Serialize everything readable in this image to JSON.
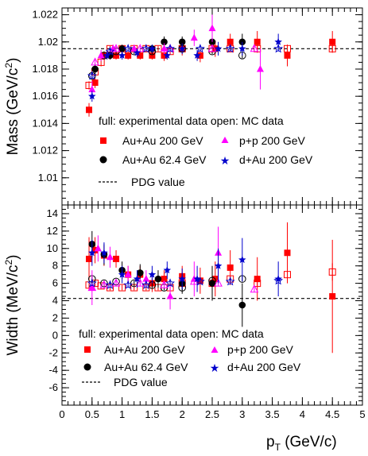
{
  "chart_data": [
    {
      "type": "scatter",
      "panel": "top",
      "ylabel": "Mass (GeV/c",
      "ylabel_sup": "2",
      "ylabel_close": ")",
      "xlim": [
        0,
        5
      ],
      "ylim": [
        1.008,
        1.0225
      ],
      "yticks": [
        "1.022",
        "1.02",
        "1.018",
        "1.016",
        "1.014",
        "1.012",
        "1.01"
      ],
      "ytick_values": [
        1.022,
        1.02,
        1.018,
        1.016,
        1.014,
        1.012,
        1.01
      ],
      "reference_line": {
        "label": "PDG value",
        "y": 1.0195,
        "style": "dashed"
      },
      "legend_header": "full: experimental data  open: MC data",
      "series": [
        {
          "name": "Au+Au 200 GeV",
          "marker": "square",
          "color": "#ff0000",
          "exp": [
            [
              0.45,
              1.015
            ],
            [
              0.55,
              1.017
            ],
            [
              0.7,
              1.019
            ],
            [
              0.9,
              1.019
            ],
            [
              1.1,
              1.019
            ],
            [
              1.3,
              1.019
            ],
            [
              1.5,
              1.019
            ],
            [
              1.7,
              1.019
            ],
            [
              2.0,
              1.0195
            ],
            [
              2.3,
              1.019
            ],
            [
              2.55,
              1.0195
            ],
            [
              2.8,
              1.02
            ],
            [
              3.25,
              1.02
            ],
            [
              3.75,
              1.019
            ],
            [
              4.5,
              1.02
            ]
          ],
          "exp_err": [
            0.0005,
            0.0004,
            0.0003,
            0.0003,
            0.0003,
            0.0003,
            0.0003,
            0.0004,
            0.0005,
            0.0005,
            0.0006,
            0.0006,
            0.0008,
            0.0008,
            0.0008
          ],
          "mc": [
            [
              0.45,
              1.0168
            ],
            [
              0.55,
              1.0178
            ],
            [
              0.65,
              1.0185
            ],
            [
              0.8,
              1.0195
            ],
            [
              1.0,
              1.0195
            ],
            [
              1.2,
              1.0195
            ],
            [
              1.4,
              1.0195
            ],
            [
              1.6,
              1.0195
            ],
            [
              1.8,
              1.0193
            ],
            [
              2.0,
              1.0195
            ],
            [
              2.5,
              1.0195
            ],
            [
              2.8,
              1.0195
            ],
            [
              3.25,
              1.0195
            ],
            [
              3.75,
              1.0195
            ],
            [
              4.5,
              1.0195
            ]
          ],
          "mc_err": [
            0.0003,
            0.0003,
            0.0003,
            0.0002,
            0.0002,
            0.0002,
            0.0002,
            0.0002,
            0.0002,
            0.0002,
            0.0002,
            0.0002,
            0.0002,
            0.0002,
            0.0002
          ]
        },
        {
          "name": "Au+Au 62.4 GeV",
          "marker": "circle",
          "color": "#000000",
          "exp": [
            [
              0.55,
              1.018
            ],
            [
              0.8,
              1.019
            ],
            [
              1.0,
              1.0195
            ],
            [
              1.5,
              1.0195
            ],
            [
              1.7,
              1.02
            ],
            [
              2.0,
              1.02
            ],
            [
              2.5,
              1.02
            ],
            [
              3.0,
              1.02
            ]
          ],
          "exp_err": [
            0.0004,
            0.0003,
            0.0003,
            0.0003,
            0.0004,
            0.0004,
            0.0005,
            0.0006
          ],
          "mc": [
            [
              0.5,
              1.0175
            ],
            [
              0.7,
              1.019
            ],
            [
              0.9,
              1.0193
            ],
            [
              1.2,
              1.0193
            ],
            [
              1.5,
              1.0193
            ],
            [
              2.0,
              1.0195
            ],
            [
              2.5,
              1.0193
            ],
            [
              3.0,
              1.019
            ]
          ],
          "mc_err": [
            0.0002,
            0.0002,
            0.0002,
            0.0002,
            0.0002,
            0.0002,
            0.0002,
            0.0002
          ]
        },
        {
          "name": "p+p 200 GeV",
          "marker": "triangle",
          "color": "#ff00ff",
          "exp": [
            [
              0.5,
              1.0165
            ],
            [
              0.65,
              1.019
            ],
            [
              0.85,
              1.0195
            ],
            [
              1.2,
              1.0195
            ],
            [
              1.7,
              1.0195
            ],
            [
              2.2,
              1.0203
            ],
            [
              2.5,
              1.021
            ],
            [
              3.3,
              1.018
            ]
          ],
          "exp_err": [
            0.0006,
            0.0004,
            0.0003,
            0.0003,
            0.0004,
            0.0006,
            0.001,
            0.0015
          ],
          "mc": [
            [
              0.55,
              1.0185
            ],
            [
              0.9,
              1.0195
            ],
            [
              1.3,
              1.0195
            ],
            [
              1.8,
              1.0195
            ],
            [
              2.5,
              1.0195
            ],
            [
              3.2,
              1.0195
            ]
          ],
          "mc_err": [
            0.0002,
            0.0002,
            0.0002,
            0.0002,
            0.0002,
            0.0002
          ]
        },
        {
          "name": "d+Au 200 GeV",
          "marker": "star",
          "color": "#0000cc",
          "exp": [
            [
              0.5,
              1.016
            ],
            [
              0.75,
              1.019
            ],
            [
              1.0,
              1.019
            ],
            [
              1.25,
              1.0192
            ],
            [
              1.5,
              1.0195
            ],
            [
              1.75,
              1.019
            ],
            [
              2.0,
              1.0195
            ],
            [
              2.25,
              1.019
            ],
            [
              2.6,
              1.0195
            ],
            [
              3.0,
              1.0195
            ],
            [
              3.6,
              1.02
            ]
          ],
          "exp_err": [
            0.0004,
            0.0003,
            0.0003,
            0.0003,
            0.0003,
            0.0003,
            0.0004,
            0.0004,
            0.0005,
            0.0005,
            0.0006
          ],
          "mc": [
            [
              0.5,
              1.0175
            ],
            [
              0.8,
              1.0193
            ],
            [
              1.1,
              1.0195
            ],
            [
              1.4,
              1.0195
            ],
            [
              1.8,
              1.0195
            ],
            [
              2.3,
              1.0195
            ],
            [
              2.8,
              1.0195
            ],
            [
              3.6,
              1.0195
            ]
          ],
          "mc_err": [
            0.0002,
            0.0002,
            0.0002,
            0.0002,
            0.0002,
            0.0002,
            0.0002,
            0.0002
          ]
        }
      ]
    },
    {
      "type": "scatter",
      "panel": "bottom",
      "ylabel": "Width (MeV/c",
      "ylabel_sup": "2",
      "ylabel_close": ")",
      "xlabel": "p",
      "xlabel_sub": "T",
      "xlabel_rest": " (GeV/c)",
      "xlim": [
        0,
        5
      ],
      "ylim": [
        -8,
        15
      ],
      "xticks": [
        "0",
        "0.5",
        "1",
        "1.5",
        "2",
        "2.5",
        "3",
        "3.5",
        "4",
        "4.5",
        "5"
      ],
      "xtick_values": [
        0,
        0.5,
        1,
        1.5,
        2,
        2.5,
        3,
        3.5,
        4,
        4.5,
        5
      ],
      "yticks": [
        "14",
        "12",
        "10",
        "8",
        "6",
        "4",
        "2",
        "0",
        "-2",
        "-4",
        "-6"
      ],
      "ytick_values": [
        14,
        12,
        10,
        8,
        6,
        4,
        2,
        0,
        -2,
        -4,
        -6
      ],
      "reference_line": {
        "label": "PDG value",
        "y": 4.26,
        "style": "dashed"
      },
      "legend_header": "full: experimental data  open: MC data",
      "series": [
        {
          "name": "Au+Au 200 GeV",
          "marker": "square",
          "color": "#ff0000",
          "exp": [
            [
              0.45,
              8.8
            ],
            [
              0.55,
              9.8
            ],
            [
              0.7,
              9.2
            ],
            [
              0.9,
              8.8
            ],
            [
              1.1,
              7.0
            ],
            [
              1.3,
              7.0
            ],
            [
              1.5,
              6.0
            ],
            [
              1.7,
              6.5
            ],
            [
              2.0,
              6.8
            ],
            [
              2.3,
              6.3
            ],
            [
              2.55,
              6.5
            ],
            [
              2.8,
              7.8
            ],
            [
              3.25,
              6.5
            ],
            [
              3.75,
              9.5
            ],
            [
              4.5,
              4.5
            ]
          ],
          "exp_err": [
            2.5,
            1.5,
            1.2,
            1.0,
            1.0,
            1.0,
            1.0,
            1.0,
            1.2,
            1.5,
            2.0,
            2.0,
            2.5,
            3.5,
            6.5
          ],
          "mc": [
            [
              0.45,
              5.8
            ],
            [
              0.55,
              6.0
            ],
            [
              0.65,
              5.7
            ],
            [
              0.8,
              5.5
            ],
            [
              1.0,
              5.5
            ],
            [
              1.2,
              5.5
            ],
            [
              1.4,
              5.5
            ],
            [
              1.6,
              5.5
            ],
            [
              1.8,
              5.5
            ],
            [
              2.0,
              6.0
            ],
            [
              2.5,
              6.0
            ],
            [
              2.8,
              6.5
            ],
            [
              3.25,
              6.0
            ],
            [
              3.75,
              7.0
            ],
            [
              4.5,
              7.3
            ]
          ],
          "mc_err": [
            0.4,
            0.3,
            0.3,
            0.3,
            0.3,
            0.3,
            0.3,
            0.3,
            0.3,
            0.3,
            0.3,
            0.3,
            0.4,
            0.5,
            1.0
          ]
        },
        {
          "name": "Au+Au 62.4 GeV",
          "marker": "circle",
          "color": "#000000",
          "exp": [
            [
              0.5,
              10.5
            ],
            [
              0.7,
              9.3
            ],
            [
              1.0,
              7.5
            ],
            [
              1.3,
              7.2
            ],
            [
              1.6,
              6.5
            ],
            [
              2.0,
              6.0
            ],
            [
              2.5,
              6.0
            ],
            [
              3.0,
              3.5
            ]
          ],
          "exp_err": [
            1.5,
            1.2,
            1.0,
            1.0,
            1.0,
            1.2,
            2.0,
            2.5
          ],
          "mc": [
            [
              0.5,
              6.5
            ],
            [
              0.7,
              6.0
            ],
            [
              0.9,
              6.2
            ],
            [
              1.2,
              6.0
            ],
            [
              1.5,
              5.8
            ],
            [
              1.7,
              5.5
            ],
            [
              2.0,
              5.5
            ],
            [
              2.5,
              6.3
            ],
            [
              3.0,
              6.5
            ]
          ],
          "mc_err": [
            0.3,
            0.3,
            0.3,
            0.3,
            0.3,
            0.3,
            0.3,
            0.3,
            0.3
          ]
        },
        {
          "name": "p+p 200 GeV",
          "marker": "triangle",
          "color": "#ff00ff",
          "exp": [
            [
              0.5,
              5.5
            ],
            [
              0.6,
              10.0
            ],
            [
              0.8,
              9.0
            ],
            [
              1.1,
              7.0
            ],
            [
              1.4,
              6.5
            ],
            [
              1.8,
              4.5
            ],
            [
              2.2,
              6.5
            ],
            [
              2.6,
              9.5
            ]
          ],
          "exp_err": [
            2.0,
            1.5,
            1.2,
            1.0,
            1.0,
            1.5,
            2.0,
            3.0
          ],
          "mc": [
            [
              0.5,
              5.5
            ],
            [
              0.7,
              5.8
            ],
            [
              0.9,
              6.0
            ],
            [
              1.3,
              6.0
            ],
            [
              1.7,
              5.8
            ],
            [
              2.2,
              6.2
            ],
            [
              2.6,
              6.0
            ],
            [
              3.2,
              5.3
            ]
          ],
          "mc_err": [
            0.3,
            0.3,
            0.3,
            0.3,
            0.3,
            0.3,
            0.3,
            0.3
          ]
        },
        {
          "name": "d+Au 200 GeV",
          "marker": "star",
          "color": "#0000cc",
          "exp": [
            [
              0.5,
              9.5
            ],
            [
              0.7,
              9.5
            ],
            [
              1.0,
              7.0
            ],
            [
              1.25,
              6.5
            ],
            [
              1.5,
              7.0
            ],
            [
              1.75,
              7.5
            ],
            [
              2.0,
              6.5
            ],
            [
              2.25,
              6.5
            ],
            [
              2.6,
              8.0
            ],
            [
              3.0,
              8.7
            ],
            [
              3.6,
              6.5
            ]
          ],
          "exp_err": [
            1.5,
            1.2,
            1.0,
            1.0,
            1.0,
            1.0,
            1.2,
            1.5,
            2.0,
            2.5,
            2.0
          ],
          "mc": [
            [
              0.5,
              6.0
            ],
            [
              0.8,
              5.8
            ],
            [
              1.1,
              5.8
            ],
            [
              1.4,
              5.8
            ],
            [
              1.8,
              6.0
            ],
            [
              2.3,
              6.2
            ],
            [
              2.8,
              6.2
            ],
            [
              3.6,
              6.3
            ]
          ],
          "mc_err": [
            0.3,
            0.3,
            0.3,
            0.3,
            0.3,
            0.3,
            0.3,
            0.3
          ]
        }
      ]
    }
  ],
  "legend": {
    "header": "full: experimental data   open: MC data",
    "au200": "Au+Au 200 GeV",
    "au62": "Au+Au 62.4 GeV",
    "pp200": "p+p 200 GeV",
    "dau200": "d+Au 200 GeV",
    "pdg": "PDG value"
  },
  "colors": {
    "red": "#ff0000",
    "black": "#000000",
    "magenta": "#ff00ff",
    "blue": "#0000cc"
  }
}
